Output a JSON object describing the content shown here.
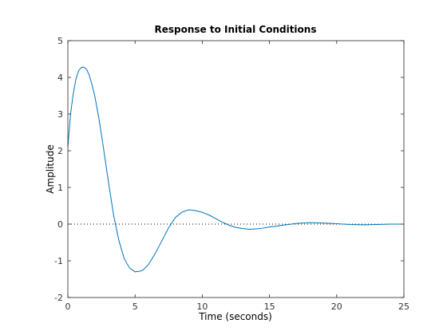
{
  "chart_data": {
    "type": "line",
    "title": "Response to Initial Conditions",
    "xlabel": "Time (seconds)",
    "ylabel": "Amplitude",
    "xlim": [
      0,
      25
    ],
    "ylim": [
      -2,
      5
    ],
    "xticks": [
      0,
      5,
      10,
      15,
      20,
      25
    ],
    "yticks": [
      -2,
      -1,
      0,
      1,
      2,
      3,
      4,
      5
    ],
    "grid": false,
    "legend": "none",
    "colors": {
      "line": "#0072BD",
      "axes": "#262626",
      "zero_line": "#000000"
    },
    "reference_lines": [
      {
        "y": 0,
        "style": "dotted"
      }
    ],
    "series": [
      {
        "x": [
          0,
          0.2,
          0.4,
          0.6,
          0.8,
          1.0,
          1.2,
          1.4,
          1.6,
          1.8,
          2.0,
          2.3,
          2.6,
          3.0,
          3.4,
          3.8,
          4.2,
          4.6,
          5.0,
          5.4,
          5.6,
          6.0,
          6.5,
          7.0,
          7.5,
          8.0,
          8.5,
          9.0,
          9.5,
          10.0,
          10.5,
          11.0,
          11.5,
          12.0,
          12.5,
          13.0,
          13.5,
          14.0,
          14.5,
          15.0,
          16.0,
          17.0,
          18.0,
          19.0,
          20.0,
          21.0,
          22.0,
          23.0,
          24.0,
          25.0
        ],
        "y": [
          2.1,
          3.0,
          3.55,
          3.95,
          4.18,
          4.27,
          4.28,
          4.22,
          4.05,
          3.8,
          3.5,
          2.9,
          2.2,
          1.2,
          0.25,
          -0.45,
          -0.95,
          -1.2,
          -1.3,
          -1.28,
          -1.25,
          -1.1,
          -0.8,
          -0.45,
          -0.1,
          0.18,
          0.33,
          0.39,
          0.37,
          0.32,
          0.25,
          0.15,
          0.05,
          -0.03,
          -0.09,
          -0.12,
          -0.14,
          -0.13,
          -0.11,
          -0.08,
          -0.03,
          0.02,
          0.04,
          0.03,
          0.01,
          -0.01,
          -0.02,
          -0.01,
          0.0,
          0.0
        ]
      }
    ]
  }
}
